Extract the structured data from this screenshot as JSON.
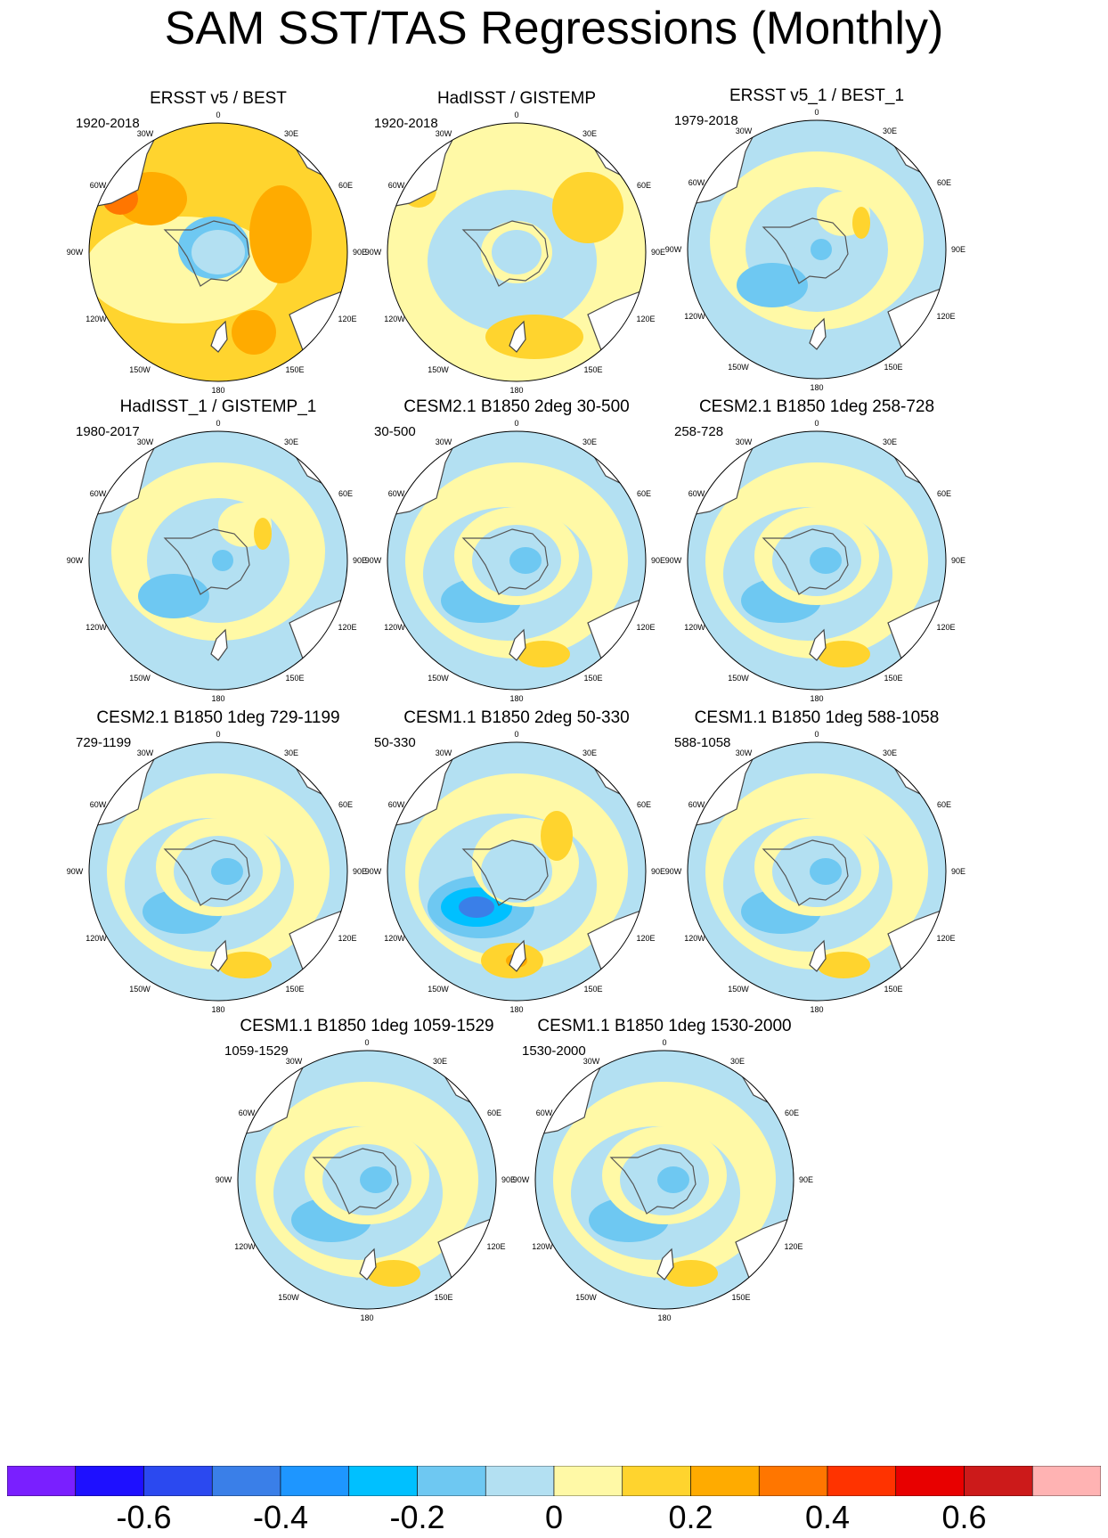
{
  "title": "SAM SST/TAS Regressions (Monthly)",
  "map_labels": {
    "top": "0",
    "bottom": "180",
    "left": "90W",
    "right": "90E",
    "w30": "30W",
    "e30": "30E",
    "w60": "60W",
    "e60": "60E",
    "w120": "120W",
    "e120": "120E",
    "w150": "150W",
    "e150": "150E"
  },
  "panels": [
    {
      "title": "ERSST v5 / BEST",
      "period": "1920-2018"
    },
    {
      "title": "HadISST / GISTEMP",
      "period": "1920-2018"
    },
    {
      "title": "ERSST v5_1 / BEST_1",
      "period": "1979-2018"
    },
    {
      "title": "HadISST_1 / GISTEMP_1",
      "period": "1980-2017"
    },
    {
      "title": "CESM2.1 B1850 2deg 30-500",
      "period": "30-500"
    },
    {
      "title": "CESM2.1 B1850 1deg 258-728",
      "period": "258-728"
    },
    {
      "title": "CESM2.1 B1850 1deg 729-1199",
      "period": "729-1199"
    },
    {
      "title": "CESM1.1 B1850 2deg 50-330",
      "period": "50-330"
    },
    {
      "title": "CESM1.1 B1850 1deg 588-1058",
      "period": "588-1058"
    },
    {
      "title": "CESM1.1 B1850 1deg 1059-1529",
      "period": "1059-1529"
    },
    {
      "title": "CESM1.1 B1850 1deg 1530-2000",
      "period": "1530-2000"
    }
  ],
  "colorbar": {
    "colors": [
      "#7a1fff",
      "#1e10ff",
      "#2b49f0",
      "#3a7fe8",
      "#1e96ff",
      "#00c0ff",
      "#6ec8f2",
      "#b3e0f2",
      "#fff9a6",
      "#ffd42e",
      "#ffab00",
      "#ff7600",
      "#ff3300",
      "#e80000",
      "#cc1a1a",
      "#ffb3b3"
    ],
    "tick_labels": [
      "-0.6",
      "-0.4",
      "-0.2",
      "0",
      "0.2",
      "0.4",
      "0.6"
    ]
  }
}
